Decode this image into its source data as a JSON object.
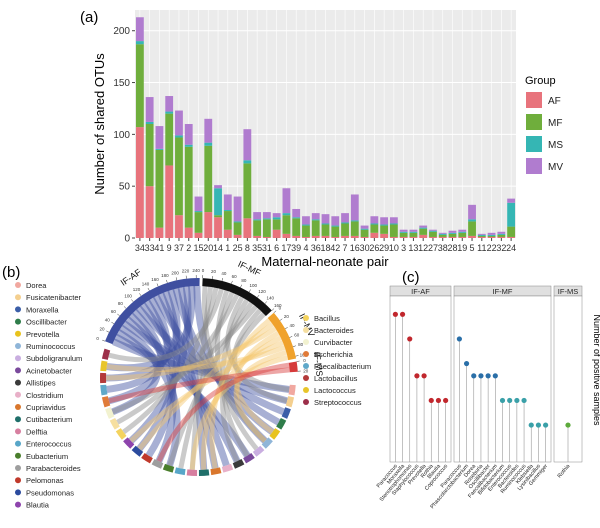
{
  "panels": {
    "a": {
      "label": "(a)"
    },
    "b": {
      "label": "(b)"
    },
    "c": {
      "label": "(c)"
    }
  },
  "chart_data": [
    {
      "id": "a",
      "type": "bar",
      "stacked": true,
      "xlabel": "Maternal-neonate pair",
      "ylabel": "Number of shared OTUs",
      "ylim": [
        0,
        220
      ],
      "yticks": [
        0,
        50,
        100,
        150,
        200
      ],
      "legend": {
        "title": "Group",
        "placement": "right"
      },
      "categories": [
        "34",
        "33",
        "41",
        "9",
        "37",
        "2",
        "15",
        "20",
        "14",
        "1",
        "25",
        "8",
        "35",
        "31",
        "6",
        "17",
        "39",
        "4",
        "36",
        "18",
        "42",
        "7",
        "16",
        "30",
        "26",
        "29",
        "10",
        "3",
        "13",
        "12",
        "27",
        "38",
        "28",
        "19",
        "5",
        "11",
        "22",
        "32",
        "24"
      ],
      "series": [
        {
          "name": "AF",
          "color": "#e8737c",
          "values": [
            107,
            50,
            10,
            70,
            22,
            10,
            5,
            25,
            20,
            8,
            3,
            19,
            2,
            1,
            8,
            4,
            2,
            1,
            2,
            2,
            1,
            2,
            2,
            1,
            5,
            4,
            1,
            1,
            1,
            3,
            1,
            1,
            1,
            1,
            2,
            1,
            1,
            1,
            1
          ]
        },
        {
          "name": "MF",
          "color": "#6fae3c",
          "values": [
            80,
            60,
            75,
            50,
            75,
            78,
            20,
            64,
            2,
            18,
            12,
            53,
            15,
            17,
            10,
            18,
            17,
            11,
            15,
            11,
            10,
            12,
            14,
            7,
            8,
            8,
            12,
            4,
            4,
            6,
            5,
            2,
            3,
            4,
            14,
            1,
            1,
            2,
            10
          ]
        },
        {
          "name": "MS",
          "color": "#35b6b4",
          "values": [
            3,
            2,
            1,
            2,
            2,
            2,
            1,
            3,
            26,
            1,
            1,
            3,
            1,
            1,
            2,
            2,
            1,
            1,
            1,
            1,
            1,
            1,
            1,
            1,
            1,
            1,
            1,
            1,
            1,
            1,
            1,
            1,
            1,
            1,
            2,
            1,
            1,
            1,
            23
          ]
        },
        {
          "name": "MV",
          "color": "#b07ccf",
          "values": [
            23,
            24,
            22,
            15,
            24,
            20,
            14,
            23,
            3,
            15,
            24,
            30,
            7,
            6,
            4,
            24,
            8,
            8,
            6,
            9,
            9,
            9,
            25,
            3,
            7,
            7,
            6,
            2,
            2,
            2,
            1,
            1,
            2,
            2,
            14,
            1,
            2,
            2,
            4
          ]
        }
      ]
    },
    {
      "id": "b",
      "type": "chord",
      "sectors": [
        {
          "name": "IF-AF",
          "color": "#3f4fa0",
          "value": 247,
          "ticks": [
            "0",
            "20",
            "40",
            "60",
            "80",
            "100",
            "120",
            "140",
            "160",
            "180",
            "200",
            "220",
            "240"
          ]
        },
        {
          "name": "IF-MF",
          "color": "#111111",
          "value": 160,
          "ticks": [
            "0",
            "20",
            "40",
            "60",
            "80",
            "100",
            "120",
            "140",
            "160"
          ]
        },
        {
          "name": "IF-MV",
          "color": "#f0a22c",
          "value": 105,
          "ticks": [
            "0",
            "20",
            "40",
            "60",
            "80",
            "100"
          ]
        },
        {
          "name": "IF-MS",
          "color": "#d63a3a",
          "value": 21,
          "ticks": [
            "0",
            "20"
          ]
        }
      ],
      "chord_colors": [
        "#3f4fa0",
        "#8a8a8a",
        "#f5c66a",
        "#d63a3a"
      ],
      "genera_legend_left": [
        {
          "name": "Dorea",
          "color": "#f1a8a0"
        },
        {
          "name": "Fusicatenibacter",
          "color": "#f4cf8f"
        },
        {
          "name": "Moraxella",
          "color": "#3b5ea8"
        },
        {
          "name": "Oscillibacter",
          "color": "#2f7d4a"
        },
        {
          "name": "Prevotella",
          "color": "#e8c31d"
        },
        {
          "name": "Ruminococcus",
          "color": "#8fb5d8"
        },
        {
          "name": "Subdoligranulum",
          "color": "#c9aee0"
        },
        {
          "name": "Acinetobacter",
          "color": "#7a4a9c"
        },
        {
          "name": "Allistipes",
          "color": "#3a3a3a"
        },
        {
          "name": "Clostridium",
          "color": "#e8b0c8"
        },
        {
          "name": "Cupriavidus",
          "color": "#d9772d"
        },
        {
          "name": "Cutibacterium",
          "color": "#1f6f6a"
        },
        {
          "name": "Delftia",
          "color": "#d77fa0"
        },
        {
          "name": "Enterococcus",
          "color": "#58a6c8"
        },
        {
          "name": "Eubacterium",
          "color": "#4a7e2c"
        },
        {
          "name": "Parabacteroides",
          "color": "#9e9e9e"
        },
        {
          "name": "Pelomonas",
          "color": "#c0392b"
        },
        {
          "name": "Pseudomonas",
          "color": "#2b4b9e"
        },
        {
          "name": "Blautia",
          "color": "#8e44ad"
        }
      ],
      "genera_legend_right": [
        {
          "name": "Bacillus",
          "color": "#f4d35e"
        },
        {
          "name": "Bacteroides",
          "color": "#f6dfa0"
        },
        {
          "name": "Curvibacter",
          "color": "#f2f2d0"
        },
        {
          "name": "Escherichia",
          "color": "#e07b39"
        },
        {
          "name": "Faecalibacterium",
          "color": "#5fa8c9"
        },
        {
          "name": "Lactobacillus",
          "color": "#b33a3a"
        },
        {
          "name": "Lactococcus",
          "color": "#e8c52a"
        },
        {
          "name": "Streptococcus",
          "color": "#9c2f4a"
        }
      ]
    },
    {
      "id": "c",
      "type": "lollipop",
      "ylabel": "Number of positive samples",
      "facets": [
        {
          "name": "IF-AF",
          "points": [
            {
              "genus": "Paracoccus",
              "value": 6,
              "color": "#c1272d"
            },
            {
              "genus": "Moraxella",
              "value": 6,
              "color": "#c1272d"
            },
            {
              "genus": "Stenotrophomonas",
              "value": 5,
              "color": "#c1272d"
            },
            {
              "genus": "Staphylococcus",
              "value": 3.5,
              "color": "#c1272d"
            },
            {
              "genus": "Prevotella",
              "value": 3.5,
              "color": "#c1272d"
            },
            {
              "genus": "Rothia",
              "value": 2.5,
              "color": "#c1272d"
            },
            {
              "genus": "Blautia",
              "value": 2.5,
              "color": "#c1272d"
            },
            {
              "genus": "Coprococcus",
              "value": 2.5,
              "color": "#c1272d"
            }
          ]
        },
        {
          "name": "IF-MF",
          "points": [
            {
              "genus": "Paracoccus",
              "value": 5,
              "color": "#2a6fa8"
            },
            {
              "genus": "Phascolarctobacterium",
              "value": 4,
              "color": "#2a6fa8"
            },
            {
              "genus": "Dorea",
              "value": 3.5,
              "color": "#2a6fa8"
            },
            {
              "genus": "Roseburia",
              "value": 3.5,
              "color": "#2a6fa8"
            },
            {
              "genus": "Oscillibacter",
              "value": 3.5,
              "color": "#2a6fa8"
            },
            {
              "genus": "Faecalibacterium",
              "value": 3.5,
              "color": "#2a6fa8"
            },
            {
              "genus": "Bifidobacterium",
              "value": 2.5,
              "color": "#3aa0a8"
            },
            {
              "genus": "Enterococcus",
              "value": 2.5,
              "color": "#3aa0a8"
            },
            {
              "genus": "Bacteroides",
              "value": 2.5,
              "color": "#3aa0a8"
            },
            {
              "genus": "Ruminococcus",
              "value": 2.5,
              "color": "#3aa0a8"
            },
            {
              "genus": "Klebsiella",
              "value": 1.5,
              "color": "#3aa0a8"
            },
            {
              "genus": "Lysinibacillus",
              "value": 1.5,
              "color": "#3aa0a8"
            },
            {
              "genus": "Gemmiger",
              "value": 1.5,
              "color": "#3aa0a8"
            }
          ]
        },
        {
          "name": "IF-MS",
          "points": [
            {
              "genus": "Rothia",
              "value": 1.5,
              "color": "#5daa3c"
            }
          ]
        }
      ]
    }
  ]
}
